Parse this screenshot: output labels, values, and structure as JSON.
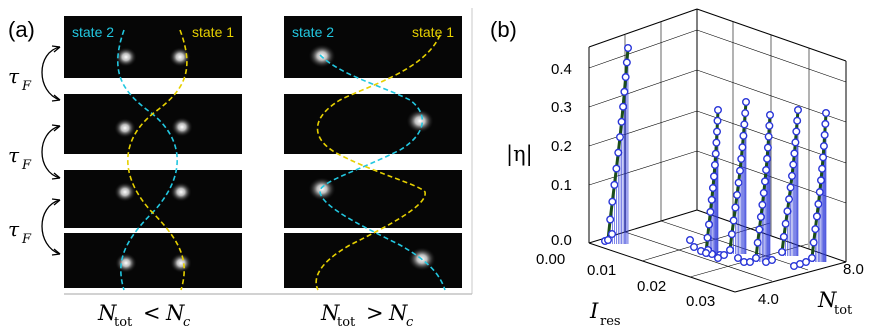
{
  "panel_a": {
    "label": "(a)",
    "state2_label": "state 2",
    "state1_label": "state 1",
    "tau_label": "τ",
    "tau_sub": "F",
    "col_left_caption": {
      "n": "N",
      "sub": "tot",
      "rel": "<",
      "nc": "N",
      "nc_sub": "c"
    },
    "col_right_caption": {
      "n": "N",
      "sub": "tot",
      "rel": ">",
      "nc": "N",
      "nc_sub": "c"
    },
    "state2_color": "#22c7e0",
    "state1_color": "#e6d000",
    "left_spots": [
      [
        "both",
        "both"
      ],
      [
        "both",
        "both"
      ],
      [
        "both",
        "both"
      ],
      [
        "both",
        "both"
      ]
    ],
    "right_spots": [
      [
        "left"
      ],
      [
        "right"
      ],
      [
        "left"
      ],
      [
        "right"
      ]
    ]
  },
  "panel_b": {
    "label": "(b)",
    "zlabel": "|η|",
    "zticks": [
      "0.4",
      "0.3",
      "0.2",
      "0.1",
      "0.0"
    ],
    "xlabel_main": "I",
    "xlabel_sub": "res",
    "xticks": [
      "0.00",
      "0.01",
      "0.02",
      "0.03"
    ],
    "ylabel_main": "N",
    "ylabel_sub": "tot",
    "yticks": [
      "4.0",
      "8.0"
    ],
    "point_color": "#2a36d8",
    "line_color": "#1a4d1a"
  }
}
